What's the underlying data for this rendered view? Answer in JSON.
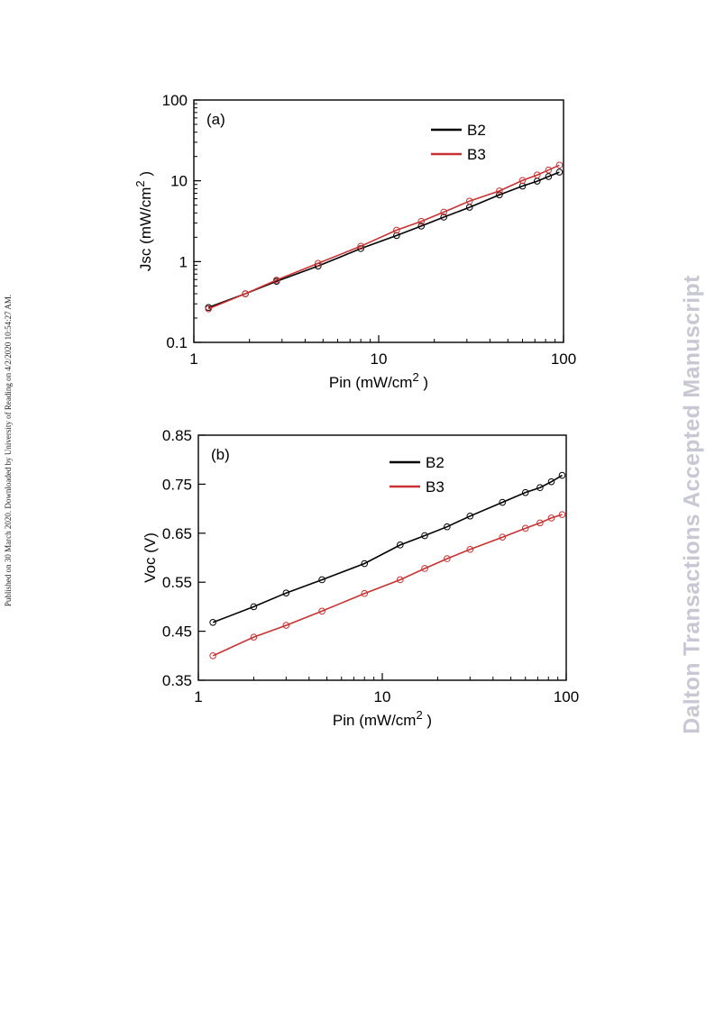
{
  "side_note": "Published on 30 March 2020. Downloaded by University of Reading on 4/2/2020 10:54:27 AM.",
  "watermark": "Dalton Transactions Accepted Manuscript",
  "colors": {
    "B2": "#000000",
    "B3": "#c83232"
  },
  "chart_data": [
    {
      "type": "line",
      "panel_label": "(a)",
      "xlabel": "Pin (mW/cm",
      "xlabel_sup": "2",
      "xlabel_end": " )",
      "ylabel": "Jsc (mW/cm",
      "ylabel_sup": "2",
      "ylabel_end": " )",
      "xscale": "log",
      "yscale": "log",
      "xlim": [
        1,
        100
      ],
      "ylim": [
        0.1,
        100
      ],
      "xticks": [
        1,
        10,
        100
      ],
      "xtick_labels": [
        "1",
        "10",
        "100"
      ],
      "yticks": [
        0.1,
        1,
        10,
        100
      ],
      "ytick_labels": [
        "0.1",
        "1",
        "10",
        "100"
      ],
      "legend_position": "top-right",
      "series": [
        {
          "name": "B2",
          "x": [
            1.2,
            1.9,
            2.8,
            4.7,
            8.0,
            12.5,
            17.0,
            22.5,
            31.0,
            45.0,
            60.0,
            72.0,
            83.0,
            95.0
          ],
          "y": [
            0.27,
            0.4,
            0.57,
            0.88,
            1.45,
            2.1,
            2.75,
            3.55,
            4.7,
            6.7,
            8.6,
            9.9,
            11.3,
            12.8
          ]
        },
        {
          "name": "B3",
          "x": [
            1.2,
            1.9,
            2.8,
            4.7,
            8.0,
            12.5,
            17.0,
            22.5,
            31.0,
            45.0,
            60.0,
            72.0,
            83.0,
            95.0
          ],
          "y": [
            0.26,
            0.4,
            0.59,
            0.95,
            1.55,
            2.45,
            3.15,
            4.1,
            5.6,
            7.5,
            10.1,
            11.8,
            13.6,
            15.6
          ]
        }
      ]
    },
    {
      "type": "line",
      "panel_label": "(b)",
      "xlabel": "Pin (mW/cm",
      "xlabel_sup": "2",
      "xlabel_end": " )",
      "ylabel": "Voc (V)",
      "xscale": "log",
      "yscale": "linear",
      "xlim": [
        1,
        100
      ],
      "ylim": [
        0.35,
        0.85
      ],
      "xticks": [
        1,
        10,
        100
      ],
      "xtick_labels": [
        "1",
        "10",
        "100"
      ],
      "yticks": [
        0.35,
        0.45,
        0.55,
        0.65,
        0.75,
        0.85
      ],
      "ytick_labels": [
        "0.35",
        "0.45",
        "0.55",
        "0.65",
        "0.75",
        "0.85"
      ],
      "legend_position": "top-center",
      "series": [
        {
          "name": "B2",
          "x": [
            1.2,
            2.0,
            3.0,
            4.7,
            8.0,
            12.5,
            17.0,
            22.5,
            30.0,
            45.0,
            60.0,
            72.0,
            83.0,
            95.0
          ],
          "y": [
            0.468,
            0.5,
            0.528,
            0.555,
            0.588,
            0.626,
            0.645,
            0.663,
            0.685,
            0.713,
            0.733,
            0.743,
            0.755,
            0.768
          ]
        },
        {
          "name": "B3",
          "x": [
            1.2,
            2.0,
            3.0,
            4.7,
            8.0,
            12.5,
            17.0,
            22.5,
            30.0,
            45.0,
            60.0,
            72.0,
            83.0,
            95.0
          ],
          "y": [
            0.4,
            0.438,
            0.462,
            0.491,
            0.527,
            0.555,
            0.578,
            0.598,
            0.617,
            0.642,
            0.66,
            0.671,
            0.681,
            0.688
          ]
        }
      ]
    }
  ]
}
